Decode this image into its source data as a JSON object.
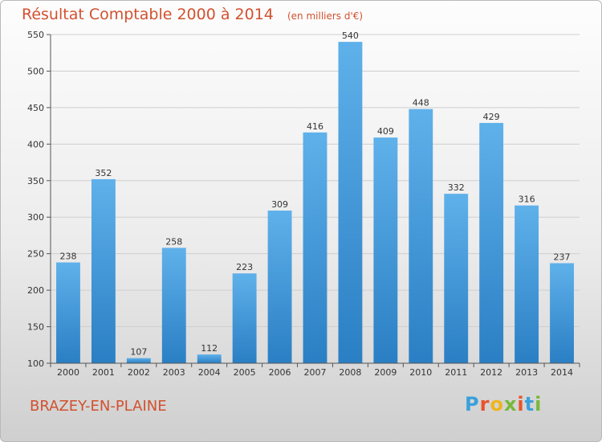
{
  "chart_data": {
    "type": "bar",
    "title": "Résultat Comptable 2000 à 2014",
    "subtitle": "(en milliers d'€)",
    "categories": [
      "2000",
      "2001",
      "2002",
      "2003",
      "2004",
      "2005",
      "2006",
      "2007",
      "2008",
      "2009",
      "2010",
      "2011",
      "2012",
      "2013",
      "2014"
    ],
    "values": [
      238,
      352,
      107,
      258,
      112,
      223,
      309,
      416,
      540,
      409,
      448,
      332,
      429,
      316,
      237
    ],
    "ylim": [
      100,
      550
    ],
    "yticks": [
      100,
      150,
      200,
      250,
      300,
      350,
      400,
      450,
      500,
      550
    ],
    "grid": true,
    "xlabel": "",
    "ylabel": ""
  },
  "footer": {
    "commune": "BRAZEY-EN-PLAINE"
  },
  "logo": {
    "text": "Proxiti",
    "letters": [
      "P",
      "r",
      "o",
      "x",
      "i",
      "t",
      "i"
    ],
    "colors": [
      "#3aa0dc",
      "#e8542a",
      "#f0b41c",
      "#78b83a",
      "#e8542a",
      "#3aa0dc",
      "#78b83a"
    ]
  },
  "colors": {
    "bar_light": "#5fb1ea",
    "bar_dark": "#2a7fc4",
    "accent": "#d2512f"
  }
}
